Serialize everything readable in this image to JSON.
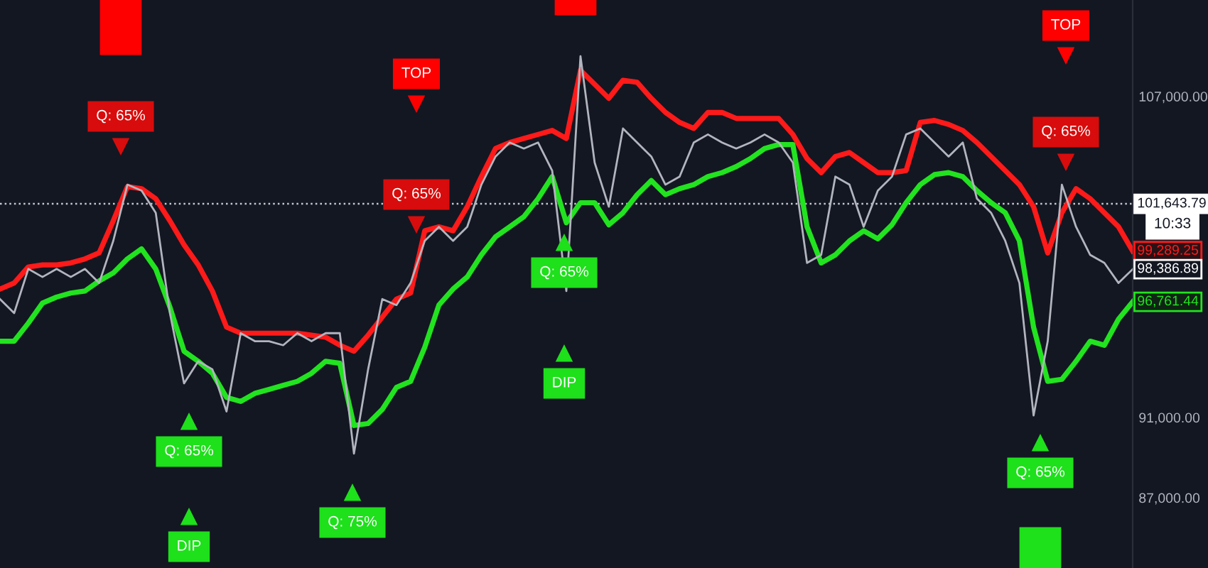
{
  "chart_data": {
    "type": "line",
    "categories": [
      null,
      null,
      null,
      null,
      null,
      null,
      null,
      null,
      null,
      null,
      null,
      null,
      null,
      null,
      null,
      null,
      null,
      null,
      null,
      null,
      null,
      null,
      null,
      null,
      null,
      null,
      null,
      null,
      null,
      null,
      null,
      null,
      null,
      null,
      null,
      null,
      null,
      null,
      null,
      null,
      null,
      null,
      null,
      null,
      null,
      null,
      null,
      null,
      null,
      null,
      null,
      null,
      null,
      null,
      null,
      null,
      null,
      null,
      null,
      null,
      null,
      null,
      null,
      null,
      null,
      null,
      null,
      null,
      null,
      null,
      null,
      null,
      null,
      null,
      null,
      null,
      null,
      null,
      null,
      null,
      null
    ],
    "series": [
      {
        "color": "#ff1a1a",
        "values": [
          97400,
          97700,
          98500,
          98600,
          98600,
          98700,
          98900,
          99200,
          100800,
          102500,
          102400,
          101900,
          100800,
          99600,
          98600,
          97300,
          95500,
          95200,
          95200,
          95200,
          95200,
          95200,
          95100,
          95000,
          94600,
          94300,
          95100,
          96000,
          96900,
          97200,
          100300,
          100500,
          100300,
          101500,
          103000,
          104400,
          104700,
          104900,
          105100,
          105300,
          104900,
          108300,
          107600,
          106900,
          107800,
          107700,
          106900,
          106200,
          105700,
          105400,
          106200,
          106200,
          105900,
          105900,
          105900,
          105900,
          105100,
          103900,
          103200,
          104000,
          104200,
          103700,
          103200,
          103200,
          103300,
          105700,
          105800,
          105600,
          105300,
          104700,
          104000,
          103300,
          102600,
          101500,
          99200,
          101200,
          102400,
          101900,
          101200,
          100500,
          99289.25
        ],
        "value_labels": [
          null,
          null,
          null,
          null,
          null,
          null,
          null,
          null,
          null,
          null,
          null,
          null,
          null,
          null,
          null,
          null,
          null,
          null,
          null,
          null,
          null,
          null,
          null,
          null,
          null,
          null,
          null,
          null,
          null,
          null,
          null,
          null,
          null,
          null,
          null,
          null,
          null,
          null,
          null,
          null,
          null,
          null,
          null,
          null,
          null,
          null,
          null,
          null,
          null,
          null,
          null,
          null,
          null,
          null,
          null,
          null,
          null,
          null,
          null,
          null,
          null,
          null,
          null,
          null,
          null,
          null,
          null,
          null,
          null,
          null,
          null,
          null,
          null,
          null,
          null,
          null,
          null,
          null,
          null,
          null,
          "99,289.25"
        ]
      },
      {
        "color": "#22e31f",
        "values": [
          94800,
          94800,
          95700,
          96700,
          97000,
          97200,
          97300,
          97800,
          98200,
          98900,
          99400,
          98400,
          96500,
          94300,
          93800,
          93200,
          92000,
          91800,
          92200,
          92400,
          92600,
          92800,
          93200,
          93800,
          93700,
          90600,
          90700,
          91400,
          92500,
          92800,
          94500,
          96600,
          97400,
          98000,
          99100,
          100000,
          100500,
          101000,
          101900,
          103000,
          100700,
          101700,
          101700,
          100600,
          101200,
          102100,
          102800,
          102100,
          102400,
          102600,
          103000,
          103200,
          103500,
          103900,
          104400,
          104600,
          104600,
          100500,
          98700,
          99100,
          99800,
          100300,
          99900,
          100600,
          101700,
          102600,
          103100,
          103200,
          103000,
          102300,
          101700,
          101200,
          99800,
          95500,
          92800,
          92900,
          93800,
          94800,
          94600,
          95900,
          96761.44
        ],
        "value_labels": [
          null,
          null,
          null,
          null,
          null,
          null,
          null,
          null,
          null,
          null,
          null,
          null,
          null,
          null,
          null,
          null,
          null,
          null,
          null,
          null,
          null,
          null,
          null,
          null,
          null,
          null,
          null,
          null,
          null,
          null,
          null,
          null,
          null,
          null,
          null,
          null,
          null,
          null,
          null,
          null,
          null,
          null,
          null,
          null,
          null,
          null,
          null,
          null,
          null,
          null,
          null,
          null,
          null,
          null,
          null,
          null,
          null,
          null,
          null,
          null,
          null,
          null,
          null,
          null,
          null,
          null,
          null,
          null,
          null,
          null,
          null,
          null,
          null,
          null,
          null,
          null,
          null,
          null,
          null,
          null,
          "96,761.44"
        ]
      },
      {
        "color": "#b2b5be",
        "values": [
          96900,
          96200,
          98400,
          98000,
          98400,
          98000,
          98400,
          97700,
          99800,
          102600,
          102300,
          101200,
          96200,
          92700,
          93800,
          93400,
          91300,
          95200,
          94800,
          94800,
          94600,
          95200,
          94800,
          95200,
          95200,
          89200,
          93400,
          96900,
          96600,
          97700,
          99800,
          100500,
          99800,
          100500,
          102600,
          104000,
          104700,
          104400,
          104700,
          103300,
          97300,
          109000,
          103700,
          101500,
          105400,
          104700,
          104000,
          102600,
          103000,
          104700,
          105100,
          104700,
          104400,
          104700,
          105100,
          104700,
          103700,
          98700,
          99100,
          103000,
          102600,
          100500,
          102300,
          103000,
          105100,
          105400,
          104700,
          104000,
          104700,
          101900,
          101200,
          99800,
          97700,
          91100,
          94800,
          102600,
          100500,
          99100,
          98700,
          97700,
          98386.89
        ],
        "value_labels": [
          null,
          null,
          null,
          null,
          null,
          null,
          null,
          null,
          null,
          null,
          null,
          null,
          null,
          null,
          null,
          null,
          null,
          null,
          null,
          null,
          null,
          null,
          null,
          null,
          null,
          null,
          null,
          null,
          null,
          null,
          null,
          null,
          null,
          null,
          null,
          null,
          null,
          null,
          null,
          null,
          null,
          null,
          null,
          null,
          null,
          null,
          null,
          null,
          null,
          null,
          null,
          null,
          null,
          null,
          null,
          null,
          null,
          null,
          null,
          null,
          null,
          null,
          null,
          null,
          null,
          null,
          null,
          null,
          null,
          null,
          null,
          null,
          null,
          null,
          null,
          null,
          null,
          null,
          null,
          null,
          "98,386.89"
        ]
      }
    ],
    "ylim": [
      83500,
      111800
    ],
    "yticks": [
      {
        "value": 107000,
        "label": "107,000.00"
      },
      {
        "value": 91000,
        "label": "91,000.00"
      },
      {
        "value": 87000,
        "label": "87,000.00"
      }
    ],
    "ref_lines": [
      {
        "axis": "y",
        "value": 101643.79,
        "label": "101,643.79",
        "color": "#c8cad0",
        "line_style": "dotted"
      }
    ],
    "annotations": [
      "Q: 65%",
      "Q: 65%",
      "DIP",
      "Q: 75%",
      "TOP",
      "Q: 65%",
      "Q: 65%",
      "DIP",
      "Q: 65%",
      "TOP",
      "Q: 65%",
      "10:33"
    ],
    "tick_labels": "y",
    "grid": false,
    "marker": "none",
    "line_style": "solid"
  }
}
